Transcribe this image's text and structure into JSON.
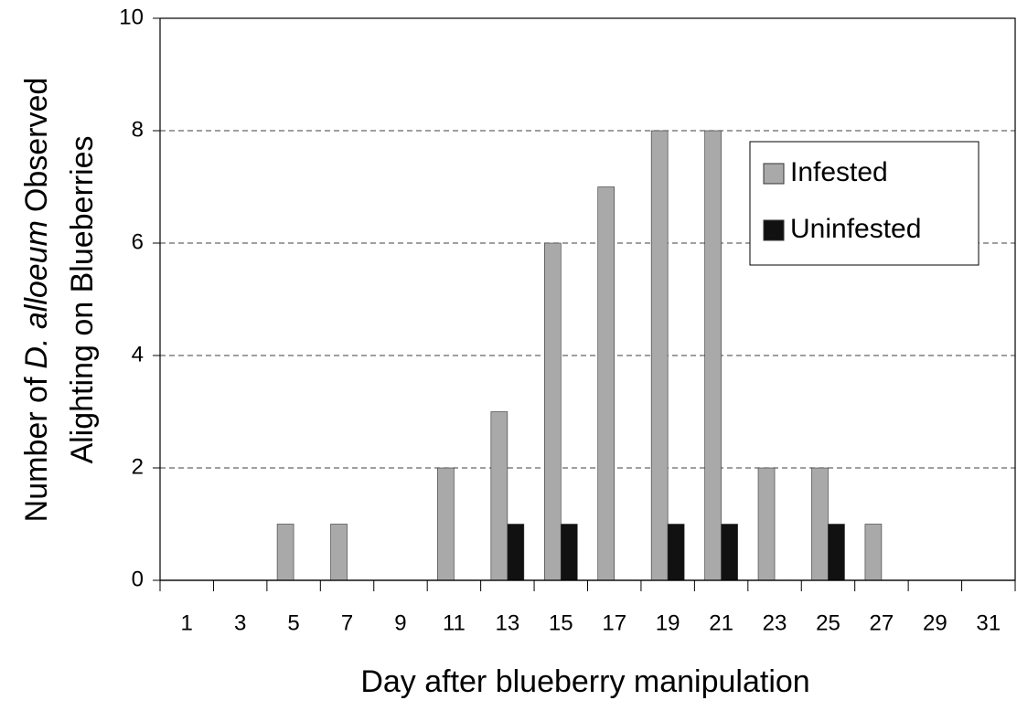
{
  "chart_data": {
    "type": "bar",
    "x_label": "Day after blueberry manipulation",
    "y_label": {
      "line1": [
        "Number of",
        "D. alloeum",
        "Observed"
      ],
      "line2": "Alighting on Blueberries"
    },
    "categories": [
      "1",
      "3",
      "5",
      "7",
      "9",
      "11",
      "13",
      "15",
      "17",
      "19",
      "21",
      "23",
      "25",
      "27",
      "29",
      "31"
    ],
    "series": [
      {
        "name": "Infested",
        "color": "#a9a9a9",
        "values": [
          0,
          0,
          1,
          1,
          0,
          2,
          3,
          6,
          7,
          8,
          8,
          2,
          2,
          1,
          0,
          0
        ]
      },
      {
        "name": "Uninfested",
        "color": "#111111",
        "values": [
          0,
          0,
          0,
          0,
          0,
          0,
          1,
          1,
          0,
          1,
          1,
          0,
          1,
          0,
          0,
          0
        ]
      }
    ],
    "ylim": [
      0,
      10
    ],
    "yticks": [
      0,
      2,
      4,
      6,
      8,
      10
    ],
    "grid": true,
    "legend": "upper right"
  }
}
